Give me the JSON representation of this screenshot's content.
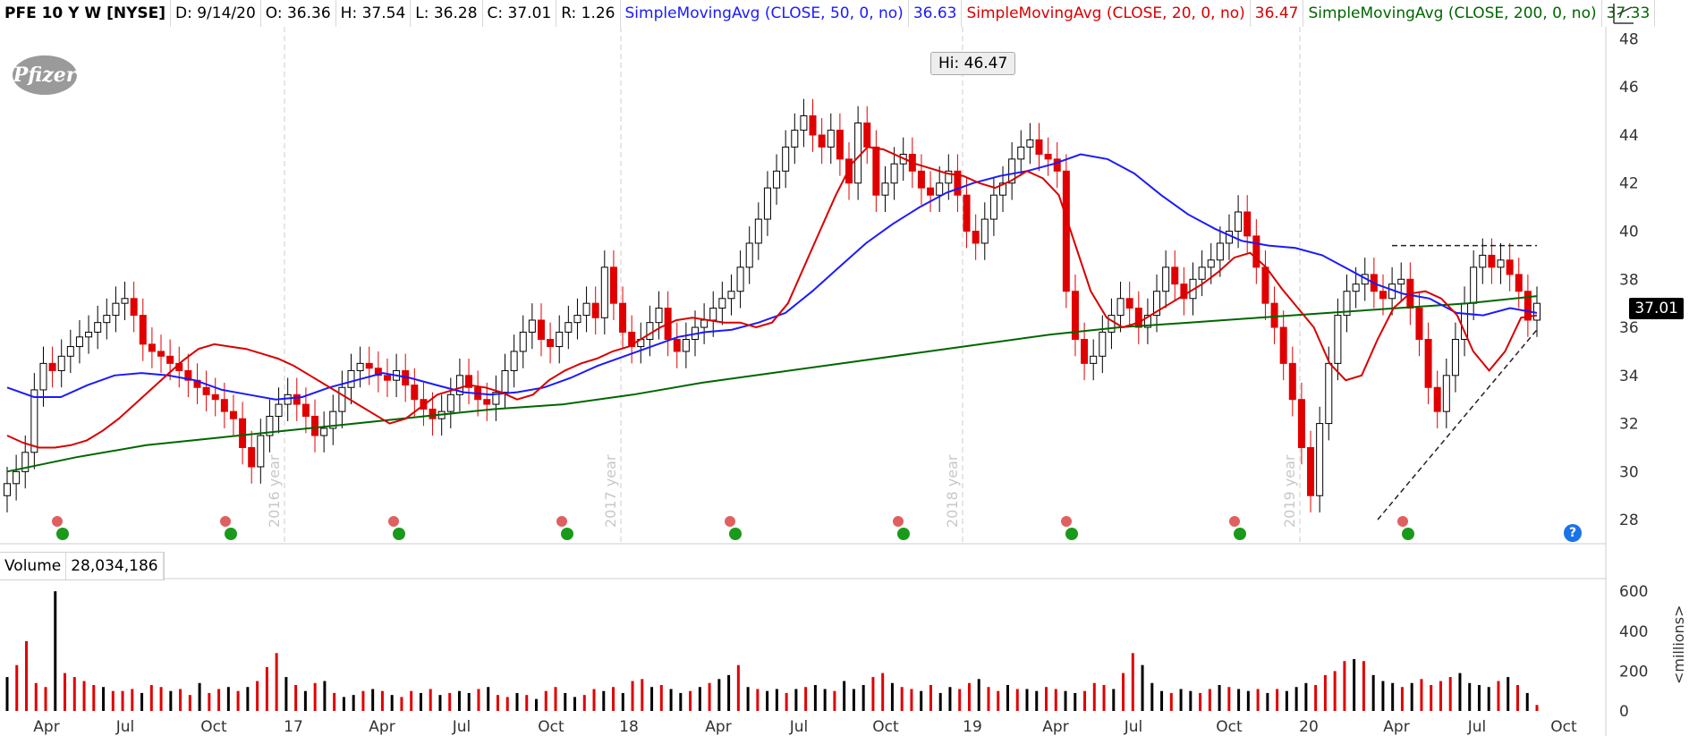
{
  "header": {
    "symbol": "PFE 10 Y W [NYSE]",
    "date": "D: 9/14/20",
    "open": "O: 36.36",
    "high": "H: 37.54",
    "low": "L: 36.28",
    "close": "C: 37.01",
    "range": "R: 1.26",
    "sma50_label": "SimpleMovingAvg (CLOSE, 50, 0, no)",
    "sma50_value": "36.63",
    "sma20_label": "SimpleMovingAvg (CLOSE, 20, 0, no)",
    "sma20_value": "36.47",
    "sma200_label": "SimpleMovingAvg (CLOSE, 200, 0, no)",
    "sma200_value": "37.33"
  },
  "logo_text": "Pfizer",
  "last_price_badge": "37.01",
  "high_callout": "Hi: 46.47",
  "volume": {
    "label": "Volume",
    "value": "28,034,186",
    "unit_label": "<millions>"
  },
  "help_label": "?",
  "colors": {
    "sma50": "#1a1aff",
    "sma20": "#d80000",
    "sma200": "#006600",
    "up_candle": "#ffffff",
    "down_candle": "#e00000",
    "vol_up": "#000000",
    "vol_down": "#e00000"
  },
  "chart_data": [
    {
      "type": "line",
      "title": "PFE 10 Y W [NYSE]",
      "ylim": [
        27,
        48.5
      ],
      "yticks": [
        28,
        30,
        32,
        34,
        36,
        38,
        40,
        42,
        44,
        46,
        48
      ],
      "x_tick_labels": [
        "Apr",
        "Jul",
        "Oct",
        "17",
        "Apr",
        "Jul",
        "Oct",
        "18",
        "Apr",
        "Jul",
        "Oct",
        "19",
        "Apr",
        "Jul",
        "Oct",
        "20",
        "Apr",
        "Jul",
        "Oct"
      ],
      "year_markers": [
        "2016 year",
        "2017 year",
        "2018 year",
        "2019 year"
      ],
      "close_weekly": [
        29.5,
        30.0,
        30.8,
        33.4,
        34.5,
        34.2,
        34.8,
        35.2,
        35.6,
        35.8,
        36.2,
        36.5,
        37.0,
        37.2,
        36.5,
        35.3,
        35.0,
        34.8,
        34.5,
        34.2,
        33.8,
        33.5,
        33.2,
        33.0,
        32.5,
        32.2,
        31.0,
        30.2,
        31.5,
        32.3,
        32.8,
        33.2,
        32.8,
        32.3,
        31.5,
        31.8,
        32.5,
        33.5,
        34.2,
        34.5,
        34.3,
        34.0,
        33.8,
        34.2,
        33.6,
        33.0,
        32.6,
        32.2,
        32.5,
        33.2,
        34.0,
        33.5,
        33.0,
        32.8,
        33.3,
        34.2,
        35.0,
        35.8,
        36.3,
        35.5,
        35.2,
        35.8,
        36.2,
        36.5,
        37.0,
        36.4,
        38.5,
        37.0,
        35.8,
        35.2,
        35.5,
        36.2,
        36.8,
        35.5,
        35.0,
        35.5,
        36.0,
        36.3,
        36.8,
        37.2,
        37.5,
        38.5,
        39.5,
        40.5,
        41.8,
        42.5,
        43.5,
        44.2,
        44.8,
        44.0,
        43.5,
        44.2,
        43.0,
        42.0,
        44.5,
        43.5,
        41.5,
        42.0,
        42.8,
        43.2,
        42.5,
        41.8,
        41.5,
        42.0,
        42.5,
        41.5,
        40.0,
        39.5,
        40.5,
        41.5,
        42.0,
        43.0,
        43.5,
        43.8,
        43.2,
        43.0,
        42.5,
        37.5,
        35.5,
        34.5,
        34.8,
        35.8,
        36.5,
        37.2,
        36.8,
        36.0,
        36.5,
        37.5,
        38.5,
        37.8,
        37.2,
        38.0,
        38.5,
        38.8,
        39.5,
        40.0,
        40.8,
        39.8,
        38.5,
        37.0,
        36.0,
        34.5,
        33.0,
        31.0,
        29.0,
        32.0,
        34.5,
        36.5,
        37.5,
        37.8,
        38.2,
        37.5,
        37.2,
        37.8,
        38.0,
        36.8,
        35.5,
        33.5,
        32.5,
        34.0,
        35.5,
        37.0,
        38.5,
        39.0,
        38.5,
        38.8,
        38.2,
        37.5,
        36.3,
        37.0
      ],
      "sma_20": {
        "x_from_week": 0,
        "values": [
          31.5,
          31.2,
          31.0,
          31.0,
          31.1,
          31.3,
          31.7,
          32.2,
          32.8,
          33.4,
          34.0,
          34.6,
          35.1,
          35.3,
          35.2,
          35.1,
          34.9,
          34.7,
          34.4,
          34.0,
          33.6,
          33.2,
          32.8,
          32.4,
          32.0,
          32.2,
          32.7,
          33.2,
          33.4,
          33.6,
          33.5,
          33.3,
          33.0,
          33.2,
          33.8,
          34.2,
          34.5,
          34.7,
          35.0,
          35.2,
          35.6,
          36.0,
          36.3,
          36.4,
          36.3,
          36.2,
          36.2,
          36.0,
          36.2,
          37.0,
          38.5,
          40.0,
          41.5,
          42.8,
          43.5,
          43.4,
          43.1,
          42.8,
          42.6,
          42.4,
          42.3,
          42.0,
          41.8,
          42.1,
          42.5,
          42.2,
          41.5,
          39.5,
          37.5,
          36.4,
          36.0,
          36.2,
          36.6,
          37.0,
          37.4,
          37.8,
          38.3,
          38.9,
          39.1,
          38.5,
          37.6,
          36.8,
          36.0,
          34.5,
          33.8,
          34.0,
          35.5,
          36.8,
          37.4,
          37.5,
          37.2,
          36.5,
          35.0,
          34.2,
          35.0,
          36.4,
          36.5
        ]
      },
      "sma_50": {
        "values": [
          33.5,
          33.1,
          33.1,
          33.6,
          34.0,
          34.1,
          34.0,
          33.8,
          33.4,
          33.2,
          33.0,
          33.1,
          33.5,
          33.8,
          34.1,
          33.9,
          33.6,
          33.3,
          33.2,
          33.3,
          33.5,
          33.9,
          34.4,
          34.8,
          35.2,
          35.6,
          35.8,
          35.9,
          36.2,
          36.6,
          37.5,
          38.5,
          39.5,
          40.3,
          41.0,
          41.6,
          42.0,
          42.3,
          42.5,
          42.8,
          43.2,
          43.0,
          42.4,
          41.5,
          40.7,
          40.1,
          39.6,
          39.4,
          39.3,
          39.0,
          38.4,
          37.8,
          37.4,
          37.2,
          36.6,
          36.5,
          36.8,
          36.6
        ]
      },
      "sma_200": {
        "values": [
          30.0,
          30.6,
          31.1,
          31.4,
          31.7,
          32.0,
          32.3,
          32.6,
          32.8,
          33.2,
          33.7,
          34.1,
          34.5,
          34.9,
          35.3,
          35.7,
          36.0,
          36.2,
          36.4,
          36.6,
          36.8,
          37.0,
          37.3
        ]
      },
      "trendline": {
        "from": [
          28.0,
          "Mar 2020"
        ],
        "to": [
          35.9,
          "Sep 2020"
        ]
      },
      "resistance": 39.4
    },
    {
      "type": "bar",
      "title": "Volume",
      "ylabel": "<millions>",
      "ylim": [
        0,
        650
      ],
      "yticks": [
        0,
        200,
        400,
        600
      ],
      "values": [
        170,
        230,
        350,
        140,
        120,
        600,
        190,
        170,
        150,
        130,
        120,
        100,
        100,
        110,
        90,
        130,
        120,
        100,
        110,
        80,
        140,
        90,
        110,
        120,
        100,
        120,
        150,
        220,
        290,
        170,
        130,
        100,
        140,
        150,
        90,
        70,
        80,
        100,
        110,
        100,
        80,
        70,
        100,
        90,
        110,
        80,
        90,
        100,
        90,
        110,
        120,
        80,
        70,
        90,
        80,
        60,
        100,
        120,
        90,
        70,
        80,
        110,
        100,
        120,
        90,
        150,
        160,
        120,
        130,
        110,
        90,
        100,
        120,
        140,
        160,
        180,
        230,
        120,
        110,
        100,
        110,
        90,
        110,
        120,
        130,
        110,
        100,
        150,
        110,
        130,
        170,
        190,
        140,
        120,
        110,
        100,
        130,
        90,
        120,
        110,
        140,
        160,
        120,
        100,
        130,
        110,
        110,
        100,
        120,
        110,
        100,
        90,
        100,
        140,
        130,
        110,
        190,
        290,
        230,
        140,
        100,
        90,
        110,
        100,
        90,
        110,
        130,
        120,
        110,
        100,
        110,
        90,
        110,
        100,
        120,
        140,
        130,
        180,
        200,
        250,
        260,
        250,
        180,
        150,
        140,
        120,
        140,
        160,
        130,
        150,
        170,
        190,
        140,
        130,
        120,
        150,
        170,
        130,
        90,
        30
      ],
      "up_flags": [
        1,
        0,
        0,
        0,
        0,
        1,
        0,
        0,
        0,
        0,
        1,
        0,
        0,
        0,
        1,
        0,
        0,
        1,
        0,
        0,
        1,
        0,
        0,
        1,
        0,
        1,
        0,
        0,
        0,
        1,
        0,
        1,
        0,
        1,
        0,
        1,
        1,
        0,
        1,
        0,
        1,
        0,
        0,
        1,
        0,
        1,
        0,
        1,
        1,
        0,
        1,
        0,
        0,
        1,
        0,
        1,
        0,
        0,
        1,
        1,
        0,
        0,
        1,
        0,
        1,
        0,
        0,
        1,
        0,
        1,
        1,
        0,
        1,
        0,
        1,
        1,
        0,
        1,
        0,
        1,
        1,
        0,
        1,
        0,
        1,
        1,
        0,
        1,
        1,
        1,
        0,
        0,
        1,
        0,
        0,
        1,
        0,
        1,
        1,
        0,
        0,
        1,
        0,
        0,
        1,
        0,
        1,
        1,
        0,
        0,
        1,
        1,
        0,
        0,
        0,
        1,
        0,
        0,
        1,
        1,
        1,
        0,
        1,
        1,
        0,
        0,
        1,
        0,
        1,
        1,
        0,
        1,
        0,
        1,
        1,
        1,
        0,
        0,
        0,
        0,
        1,
        0,
        1,
        1,
        1,
        0,
        1,
        0,
        0,
        0,
        0,
        1,
        1,
        1,
        1,
        0,
        1,
        0,
        1,
        0,
        0
      ]
    }
  ]
}
